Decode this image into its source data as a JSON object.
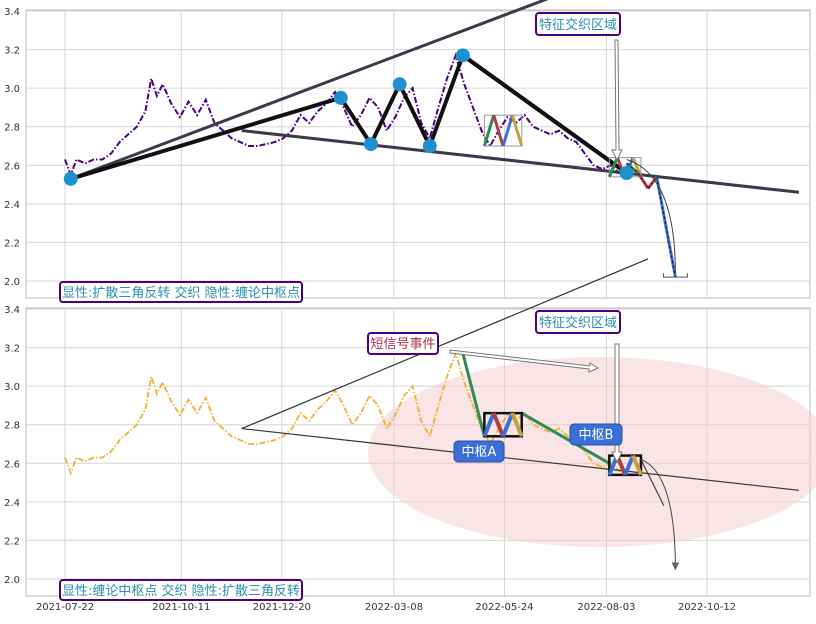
{
  "chart_data": [
    {
      "type": "line",
      "panel": "top",
      "ylim": [
        1.95,
        3.4
      ],
      "yticks": [
        "2.0",
        "2.2",
        "2.4",
        "2.6",
        "2.8",
        "3.0",
        "3.2",
        "3.4"
      ],
      "series": [
        {
          "color": "#4b0082",
          "style": "dash-dot",
          "values": [
            [
              "2021-07-22",
              2.63
            ],
            [
              "2021-07-26",
              2.55
            ],
            [
              "2021-07-30",
              2.63
            ],
            [
              "2021-08-05",
              2.61
            ],
            [
              "2021-08-11",
              2.63
            ],
            [
              "2021-08-17",
              2.63
            ],
            [
              "2021-08-23",
              2.66
            ],
            [
              "2021-08-29",
              2.72
            ],
            [
              "2021-09-04",
              2.76
            ],
            [
              "2021-09-10",
              2.8
            ],
            [
              "2021-09-16",
              2.88
            ],
            [
              "2021-09-20",
              3.05
            ],
            [
              "2021-09-24",
              2.96
            ],
            [
              "2021-09-28",
              3.02
            ],
            [
              "2021-10-04",
              2.92
            ],
            [
              "2021-10-10",
              2.85
            ],
            [
              "2021-10-16",
              2.93
            ],
            [
              "2021-10-22",
              2.86
            ],
            [
              "2021-10-28",
              2.94
            ],
            [
              "2021-11-03",
              2.82
            ],
            [
              "2021-11-09",
              2.78
            ],
            [
              "2021-11-15",
              2.74
            ],
            [
              "2021-11-21",
              2.72
            ],
            [
              "2021-11-27",
              2.7
            ],
            [
              "2021-12-03",
              2.7
            ],
            [
              "2021-12-09",
              2.71
            ],
            [
              "2021-12-15",
              2.72
            ],
            [
              "2021-12-21",
              2.74
            ],
            [
              "2021-12-27",
              2.78
            ],
            [
              "2022-01-02",
              2.86
            ],
            [
              "2022-01-08",
              2.82
            ],
            [
              "2022-01-14",
              2.88
            ],
            [
              "2022-01-20",
              2.92
            ],
            [
              "2022-01-26",
              2.98
            ],
            [
              "2022-02-01",
              2.9
            ],
            [
              "2022-02-07",
              2.8
            ],
            [
              "2022-02-13",
              2.86
            ],
            [
              "2022-02-19",
              2.95
            ],
            [
              "2022-02-25",
              2.9
            ],
            [
              "2022-03-03",
              2.78
            ],
            [
              "2022-03-09",
              2.85
            ],
            [
              "2022-03-15",
              2.95
            ],
            [
              "2022-03-21",
              3.0
            ],
            [
              "2022-03-27",
              2.82
            ],
            [
              "2022-04-02",
              2.74
            ],
            [
              "2022-04-08",
              2.9
            ],
            [
              "2022-04-14",
              3.05
            ],
            [
              "2022-04-20",
              3.17
            ],
            [
              "2022-04-26",
              3.02
            ],
            [
              "2022-05-02",
              2.9
            ],
            [
              "2022-05-08",
              2.78
            ],
            [
              "2022-05-14",
              2.7
            ],
            [
              "2022-05-20",
              2.78
            ],
            [
              "2022-05-26",
              2.85
            ],
            [
              "2022-06-01",
              2.82
            ],
            [
              "2022-06-07",
              2.86
            ],
            [
              "2022-06-13",
              2.8
            ],
            [
              "2022-06-19",
              2.78
            ],
            [
              "2022-06-25",
              2.76
            ],
            [
              "2022-07-01",
              2.78
            ],
            [
              "2022-07-07",
              2.74
            ],
            [
              "2022-07-13",
              2.72
            ],
            [
              "2022-07-19",
              2.66
            ],
            [
              "2022-07-25",
              2.6
            ],
            [
              "2022-07-31",
              2.58
            ],
            [
              "2022-08-06",
              2.6
            ],
            [
              "2022-08-12",
              2.56
            ],
            [
              "2022-08-16",
              2.55
            ]
          ]
        }
      ],
      "pivot_points": [
        [
          "2021-07-26",
          2.53
        ],
        [
          "2022-01-30",
          2.95
        ],
        [
          "2022-02-20",
          2.71
        ],
        [
          "2022-03-12",
          3.02
        ],
        [
          "2022-04-02",
          2.7
        ],
        [
          "2022-04-25",
          3.17
        ],
        [
          "2022-08-17",
          2.56
        ]
      ],
      "trendlines": [
        {
          "from": [
            "2021-07-26",
            2.53
          ],
          "to": [
            "2022-09-01",
            3.66
          ]
        },
        {
          "from": [
            "2021-11-22",
            2.78
          ],
          "to": [
            "2022-12-15",
            2.46
          ]
        },
        {
          "from": [
            "2022-04-25",
            3.17
          ],
          "to": [
            "2022-08-17",
            2.56
          ]
        }
      ],
      "projection": [
        [
          "2022-08-17",
          2.61
        ],
        [
          "2022-08-25",
          2.56
        ],
        [
          "2022-09-01",
          2.48
        ],
        [
          "2022-09-07",
          2.54
        ],
        [
          "2022-09-20",
          2.02
        ]
      ],
      "label_top": "特征交织区域",
      "label_bottom": "显性:扩散三角反转 交织 隐性:缠论中枢点"
    },
    {
      "type": "line",
      "panel": "bottom",
      "ylim": [
        1.95,
        3.4
      ],
      "yticks": [
        "2.0",
        "2.2",
        "2.4",
        "2.6",
        "2.8",
        "3.0",
        "3.2",
        "3.4"
      ],
      "xticks": [
        "2021-07-22",
        "2021-10-11",
        "2021-12-20",
        "2022-03-08",
        "2022-05-24",
        "2022-08-03",
        "2022-10-12"
      ],
      "series": [
        {
          "color": "#f0b030",
          "style": "dash-dot",
          "values": "same as top panel"
        }
      ],
      "zones": [
        {
          "label": "中枢A",
          "from": "2022-05-10",
          "to": "2022-06-05",
          "ylim": [
            2.74,
            2.86
          ]
        },
        {
          "label": "中枢B",
          "from": "2022-08-05",
          "to": "2022-08-27",
          "ylim": [
            2.54,
            2.64
          ]
        }
      ],
      "label_top": "特征交织区域",
      "label_signal": "短信号事件",
      "label_bottom": "显性:缠论中枢点 交织 隐性:扩散三角反转"
    }
  ]
}
